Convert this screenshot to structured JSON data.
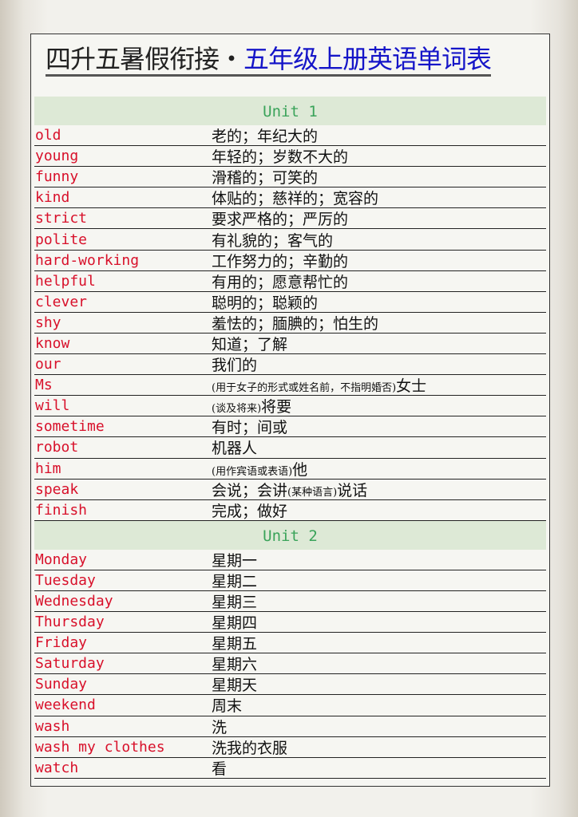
{
  "title": {
    "part1": "四升五暑假衔接・",
    "part2": "五年级上册英语单词表"
  },
  "units": [
    {
      "label": "Unit 1",
      "words": [
        {
          "en": "old",
          "zh": [
            {
              "t": "老的；年纪大的"
            }
          ]
        },
        {
          "en": "young",
          "zh": [
            {
              "t": "年轻的；岁数不大的"
            }
          ]
        },
        {
          "en": "funny",
          "zh": [
            {
              "t": "滑稽的；可笑的"
            }
          ]
        },
        {
          "en": "kind",
          "zh": [
            {
              "t": "体贴的；慈祥的；宽容的"
            }
          ]
        },
        {
          "en": "strict",
          "zh": [
            {
              "t": "要求严格的；严厉的"
            }
          ]
        },
        {
          "en": "polite",
          "zh": [
            {
              "t": "有礼貌的；客气的"
            }
          ]
        },
        {
          "en": "hard-working",
          "zh": [
            {
              "t": "工作努力的；辛勤的"
            }
          ]
        },
        {
          "en": "helpful",
          "zh": [
            {
              "t": "有用的；愿意帮忙的"
            }
          ]
        },
        {
          "en": "clever",
          "zh": [
            {
              "t": "聪明的；聪颖的"
            }
          ]
        },
        {
          "en": "shy",
          "zh": [
            {
              "t": "羞怯的；腼腆的；怕生的"
            }
          ]
        },
        {
          "en": "know",
          "zh": [
            {
              "t": "知道；了解"
            }
          ]
        },
        {
          "en": "our",
          "zh": [
            {
              "t": "我们的"
            }
          ]
        },
        {
          "en": "Ms",
          "zh": [
            {
              "t": "(用于女子的形式或姓名前，不指明婚否)",
              "small": true
            },
            {
              "t": "女士"
            }
          ]
        },
        {
          "en": "will",
          "zh": [
            {
              "t": "(谈及将来)",
              "small": true
            },
            {
              "t": "将要"
            }
          ]
        },
        {
          "en": "sometime",
          "zh": [
            {
              "t": "有时；间或"
            }
          ]
        },
        {
          "en": "robot",
          "zh": [
            {
              "t": "机器人"
            }
          ]
        },
        {
          "en": "him",
          "zh": [
            {
              "t": "(用作宾语或表语)",
              "small": true
            },
            {
              "t": "他"
            }
          ]
        },
        {
          "en": "speak",
          "zh": [
            {
              "t": "会说；会讲"
            },
            {
              "t": "(某种语言)",
              "small": true
            },
            {
              "t": "说话"
            }
          ]
        },
        {
          "en": "finish",
          "zh": [
            {
              "t": "完成；做好"
            }
          ]
        }
      ]
    },
    {
      "label": "Unit 2",
      "words": [
        {
          "en": "Monday",
          "zh": [
            {
              "t": "星期一"
            }
          ]
        },
        {
          "en": "Tuesday",
          "zh": [
            {
              "t": "星期二"
            }
          ]
        },
        {
          "en": "Wednesday",
          "zh": [
            {
              "t": "星期三"
            }
          ]
        },
        {
          "en": "Thursday",
          "zh": [
            {
              "t": "星期四"
            }
          ]
        },
        {
          "en": "Friday",
          "zh": [
            {
              "t": "星期五"
            }
          ]
        },
        {
          "en": "Saturday",
          "zh": [
            {
              "t": "星期六"
            }
          ]
        },
        {
          "en": "Sunday",
          "zh": [
            {
              "t": "星期天"
            }
          ]
        },
        {
          "en": "weekend",
          "zh": [
            {
              "t": "周末"
            }
          ]
        },
        {
          "en": "wash",
          "zh": [
            {
              "t": "洗"
            }
          ]
        },
        {
          "en": "wash my clothes",
          "zh": [
            {
              "t": "洗我的衣服"
            }
          ]
        },
        {
          "en": "watch",
          "zh": [
            {
              "t": "看"
            }
          ]
        }
      ]
    }
  ]
}
